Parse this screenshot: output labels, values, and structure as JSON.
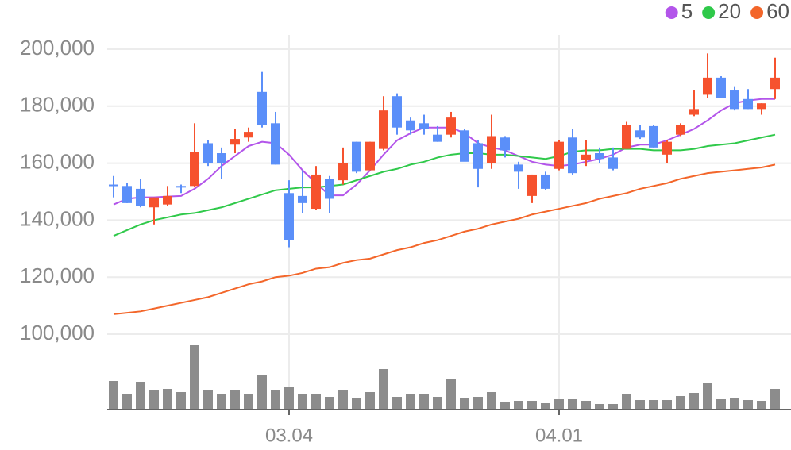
{
  "chart_data": {
    "type": "candlestick",
    "categories": [
      null,
      null,
      null,
      null,
      null,
      null,
      null,
      null,
      null,
      null,
      null,
      null,
      null,
      "03.04",
      null,
      null,
      null,
      null,
      null,
      null,
      null,
      null,
      null,
      null,
      null,
      null,
      null,
      null,
      null,
      null,
      null,
      null,
      null,
      "04.01",
      null,
      null,
      null,
      null,
      null,
      null,
      null,
      null,
      null,
      null,
      null,
      null,
      null,
      null,
      null,
      null
    ],
    "open": [
      152500,
      152000,
      151000,
      144500,
      145500,
      152000,
      152000,
      167000,
      163500,
      166500,
      169000,
      185000,
      174000,
      149500,
      148500,
      144000,
      154500,
      154000,
      167500,
      157500,
      165000,
      183500,
      175000,
      174000,
      170000,
      170000,
      171500,
      167000,
      160000,
      169000,
      159500,
      148500,
      156000,
      158000,
      169000,
      161000,
      163500,
      162000,
      165000,
      171500,
      173000,
      163000,
      170000,
      177000,
      184000,
      190000,
      185500,
      182500,
      179000,
      186000
    ],
    "high": [
      155500,
      153000,
      154500,
      148000,
      152000,
      152500,
      174000,
      168000,
      165500,
      172000,
      172500,
      192000,
      178000,
      154000,
      157500,
      159000,
      155500,
      165500,
      167500,
      167500,
      183500,
      184500,
      176000,
      177000,
      173000,
      178000,
      172000,
      168000,
      177000,
      169500,
      160500,
      156000,
      157000,
      168000,
      172000,
      168000,
      165500,
      165500,
      174500,
      173500,
      173500,
      168000,
      174000,
      185500,
      198500,
      190500,
      187000,
      186000,
      181000,
      197000
    ],
    "low": [
      148000,
      146000,
      144500,
      138500,
      145000,
      149500,
      151500,
      159000,
      154500,
      163500,
      167500,
      172500,
      159500,
      130500,
      142500,
      143500,
      142500,
      152500,
      156500,
      157500,
      164500,
      170000,
      170000,
      170000,
      167500,
      169000,
      161000,
      151500,
      158000,
      162000,
      151000,
      146000,
      150500,
      157500,
      156000,
      159000,
      160000,
      157500,
      165000,
      168500,
      165500,
      160000,
      169500,
      176500,
      183000,
      183000,
      178500,
      179000,
      177000,
      182500
    ],
    "close": [
      152000,
      146000,
      145000,
      148000,
      148500,
      151500,
      164000,
      160000,
      160000,
      168500,
      171000,
      173500,
      159500,
      133000,
      146000,
      156000,
      147500,
      160000,
      157000,
      167500,
      178500,
      172500,
      171500,
      172000,
      167500,
      176000,
      160500,
      158000,
      169500,
      164500,
      157000,
      156000,
      151000,
      167500,
      156500,
      163000,
      161500,
      158000,
      173500,
      169000,
      165500,
      167500,
      173500,
      179000,
      190000,
      183000,
      179000,
      179000,
      181000,
      190000
    ],
    "up_color": "#f6522e",
    "down_color": "#5b8ff9",
    "volume": [
      36,
      19,
      35,
      25,
      26,
      22,
      81,
      25,
      19,
      25,
      20,
      43,
      25,
      28,
      20,
      20,
      16,
      25,
      14,
      22,
      51,
      16,
      20,
      20,
      16,
      38,
      14,
      16,
      22,
      9,
      11,
      11,
      8,
      13,
      13,
      11,
      7,
      7,
      20,
      12,
      12,
      12,
      17,
      21,
      34,
      13,
      15,
      12,
      11,
      26
    ],
    "volume_color": "#8c8c8c",
    "series": [
      {
        "name": "5",
        "color": "#b355ea",
        "values": [
          145500,
          147500,
          148000,
          148000,
          148300,
          148500,
          151000,
          154500,
          159000,
          162500,
          166000,
          167500,
          167000,
          163000,
          157500,
          153000,
          148700,
          148700,
          152500,
          157500,
          163000,
          168000,
          170500,
          172500,
          172500,
          172500,
          170500,
          167000,
          165500,
          164500,
          162500,
          160500,
          159500,
          159000,
          159500,
          160500,
          161500,
          163000,
          165500,
          166500,
          166500,
          168000,
          170000,
          172000,
          175000,
          178500,
          181000,
          182000,
          182500,
          182500
        ]
      },
      {
        "name": "20",
        "color": "#2fc94a",
        "values": [
          134500,
          136500,
          138500,
          140000,
          141000,
          142000,
          142500,
          143500,
          144500,
          146000,
          147500,
          149000,
          150500,
          151000,
          151500,
          151500,
          152000,
          152500,
          154000,
          155500,
          157000,
          158000,
          159500,
          160500,
          162000,
          163000,
          163500,
          163500,
          163000,
          163000,
          162500,
          162000,
          161500,
          162500,
          164000,
          164500,
          164500,
          165000,
          165000,
          165000,
          164500,
          164500,
          164500,
          165000,
          166000,
          166500,
          167000,
          168000,
          169000,
          170000
        ]
      },
      {
        "name": "60",
        "color": "#f3662a",
        "values": [
          107000,
          107500,
          108000,
          109000,
          110000,
          111000,
          112000,
          113000,
          114500,
          116000,
          117500,
          118500,
          120000,
          120500,
          121500,
          123000,
          123500,
          125000,
          126000,
          126500,
          128000,
          129500,
          130500,
          132000,
          133000,
          134500,
          136000,
          137000,
          138500,
          139500,
          140500,
          142000,
          143000,
          144000,
          145000,
          146000,
          147500,
          148500,
          149500,
          151000,
          152000,
          153000,
          154500,
          155500,
          156500,
          157000,
          157500,
          158000,
          158500,
          159500
        ]
      }
    ],
    "ylim": [
      95000,
      205000
    ],
    "yticks": [
      {
        "value": 100000,
        "label": "100,000"
      },
      {
        "value": 120000,
        "label": "120,000"
      },
      {
        "value": 140000,
        "label": "140,000"
      },
      {
        "value": 160000,
        "label": "160,000"
      },
      {
        "value": 180000,
        "label": "180,000"
      },
      {
        "value": 200000,
        "label": "200,000"
      }
    ],
    "grid": true,
    "legend": "top-right"
  }
}
